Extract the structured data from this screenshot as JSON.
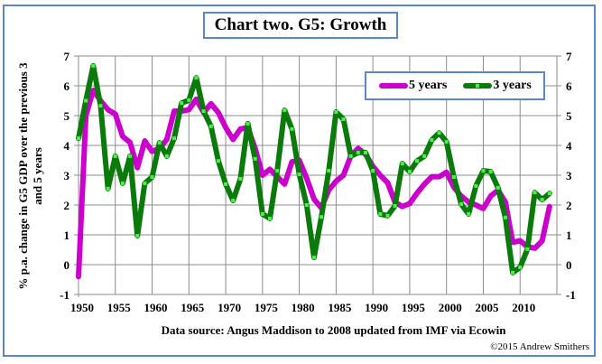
{
  "title": "Chart two. G5: Growth",
  "source_note": "Data source: Angus Maddison to 2008 updated from IMF via Ecowin",
  "copyright": "©2015 Andrew Smithers",
  "chart_data": {
    "type": "line",
    "title": "Chart two. G5: Growth",
    "xlabel": "",
    "ylabel": "% p.a. change in G5 GDP over the previous 3 and 5 years",
    "xlim": [
      1950,
      2015
    ],
    "ylim": [
      -1,
      7
    ],
    "x_ticks": [
      "1950",
      "1955",
      "1960",
      "1965",
      "1970",
      "1975",
      "1980",
      "1985",
      "1990",
      "1995",
      "2000",
      "2005",
      "2010"
    ],
    "y_ticks": [
      "-1",
      "0",
      "1",
      "2",
      "3",
      "4",
      "5",
      "6",
      "7"
    ],
    "grid": true,
    "legend_position": "top-right",
    "x": [
      1950,
      1951,
      1952,
      1953,
      1954,
      1955,
      1956,
      1957,
      1958,
      1959,
      1960,
      1961,
      1962,
      1963,
      1964,
      1965,
      1966,
      1967,
      1968,
      1969,
      1970,
      1971,
      1972,
      1973,
      1974,
      1975,
      1976,
      1977,
      1978,
      1979,
      1980,
      1981,
      1982,
      1983,
      1984,
      1985,
      1986,
      1987,
      1988,
      1989,
      1990,
      1991,
      1992,
      1993,
      1994,
      1995,
      1996,
      1997,
      1998,
      1999,
      2000,
      2001,
      2002,
      2003,
      2004,
      2005,
      2006,
      2007,
      2008,
      2009,
      2010,
      2011,
      2012,
      2013,
      2014
    ],
    "series": [
      {
        "name": "5 years",
        "color": "#cc00cc",
        "markers": false,
        "values": [
          -0.4,
          5.0,
          5.85,
          5.5,
          5.2,
          5.05,
          4.3,
          4.1,
          3.25,
          4.15,
          3.8,
          3.9,
          4.2,
          5.15,
          5.15,
          5.2,
          5.55,
          5.1,
          5.4,
          5.1,
          4.6,
          4.2,
          4.55,
          4.6,
          3.9,
          3.0,
          3.2,
          2.95,
          2.7,
          3.45,
          3.5,
          2.9,
          2.2,
          1.9,
          2.5,
          2.8,
          3.0,
          3.65,
          3.9,
          3.7,
          3.3,
          3.0,
          2.75,
          2.1,
          1.95,
          2.05,
          2.4,
          2.7,
          2.95,
          2.95,
          3.1,
          2.6,
          2.3,
          2.1,
          2.0,
          1.88,
          2.3,
          2.5,
          2.1,
          0.75,
          0.8,
          0.6,
          0.55,
          0.8,
          1.95
        ]
      },
      {
        "name": "3 years",
        "color": "#0a7a0a",
        "markers": true,
        "marker_color": "#4cf04c",
        "values": [
          4.24,
          5.5,
          6.67,
          5.33,
          2.55,
          3.64,
          2.73,
          3.64,
          0.97,
          2.73,
          2.94,
          4.09,
          3.64,
          4.24,
          5.42,
          5.52,
          6.27,
          5.15,
          4.64,
          3.48,
          2.7,
          2.15,
          2.88,
          4.73,
          3.55,
          1.7,
          1.55,
          3.15,
          5.18,
          4.55,
          3.03,
          2.0,
          0.24,
          1.6,
          3.15,
          5.12,
          4.88,
          3.64,
          3.76,
          3.76,
          3.15,
          1.7,
          1.64,
          1.97,
          3.39,
          3.12,
          3.48,
          3.64,
          4.18,
          4.42,
          4.12,
          2.94,
          2.03,
          1.7,
          2.64,
          3.15,
          3.12,
          2.58,
          1.58,
          -0.27,
          -0.09,
          0.52,
          2.42,
          2.18,
          2.39
        ]
      }
    ]
  }
}
